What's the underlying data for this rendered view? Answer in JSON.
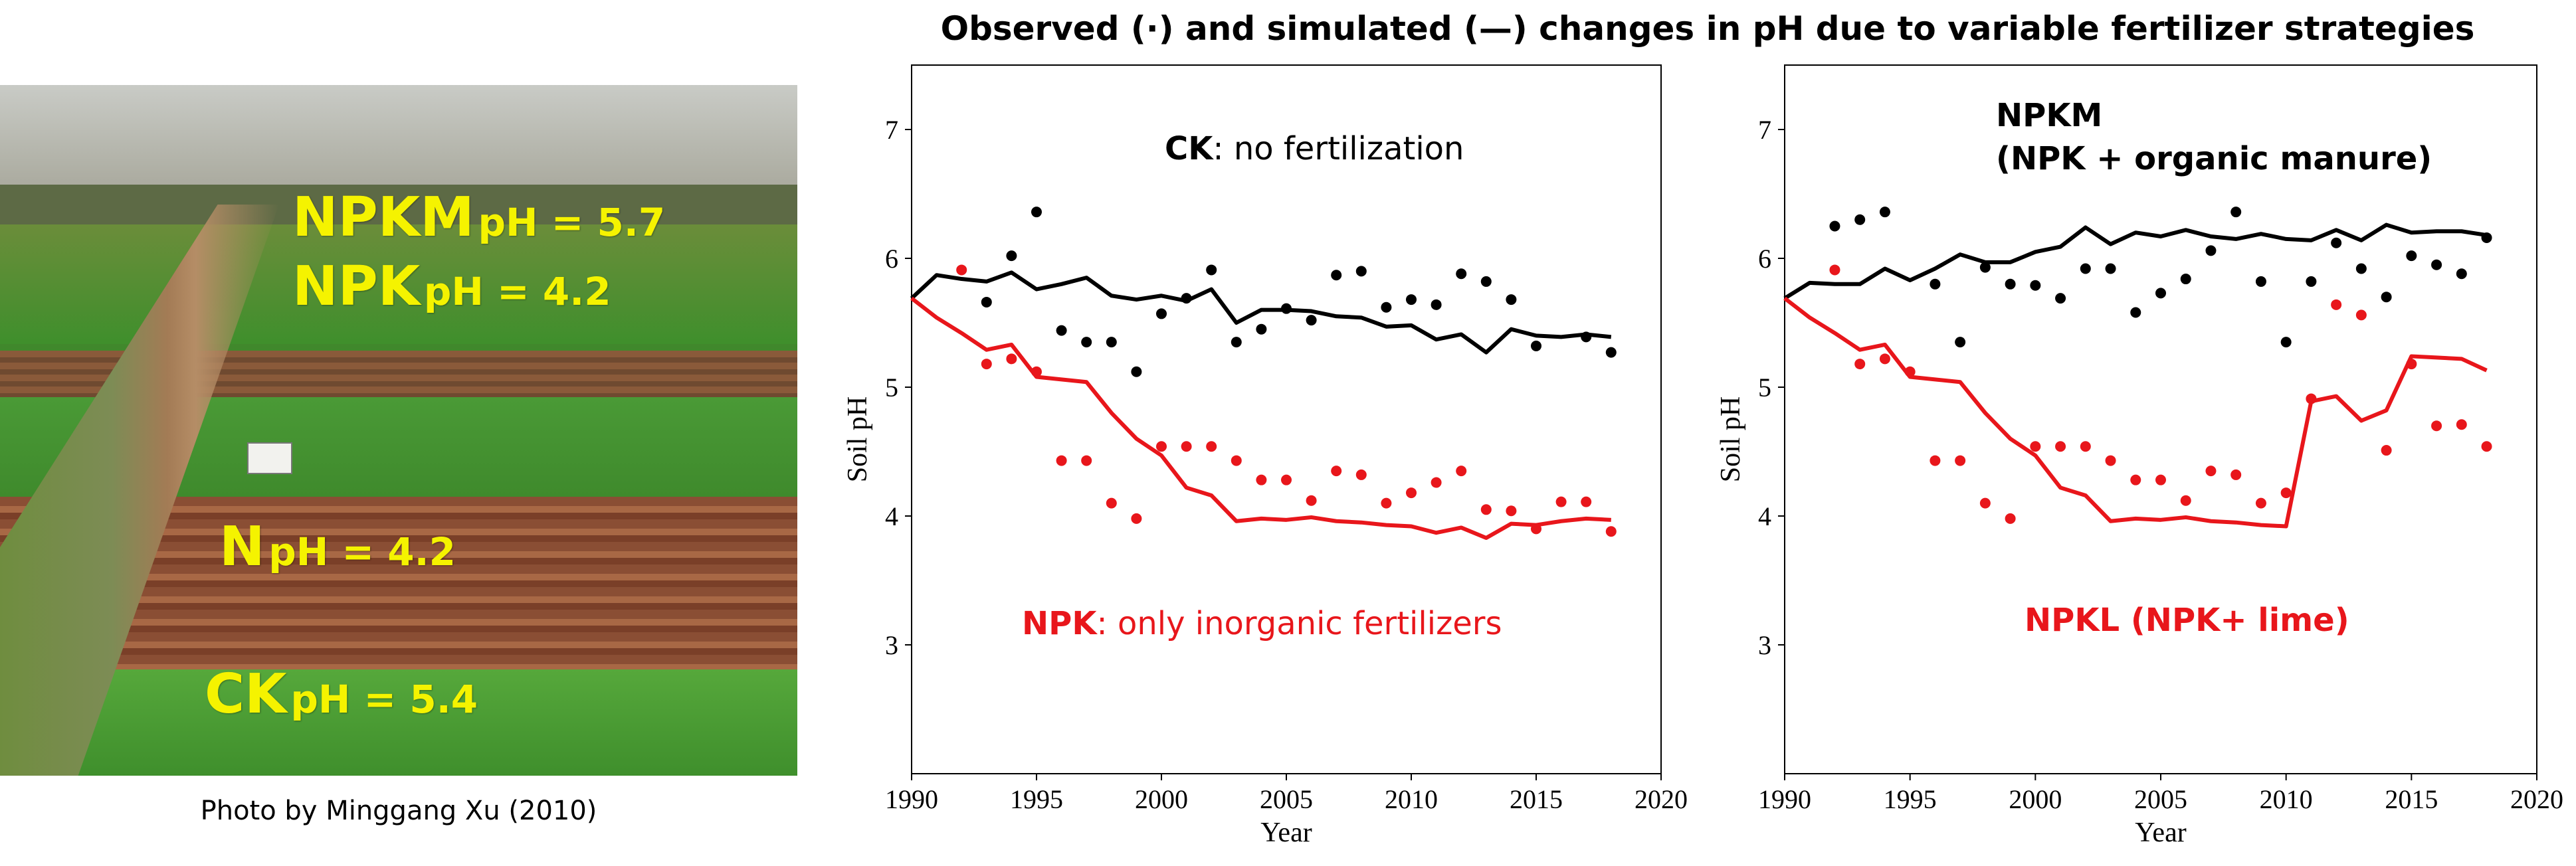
{
  "title": "Observed (·) and simulated (—) changes in pH due to variable fertilizer strategies",
  "photo": {
    "credit": "Photo by Minggang Xu (2010)",
    "labels": [
      {
        "name": "NPKM",
        "ph": "pH = 5.7"
      },
      {
        "name": "NPK",
        "ph": "pH = 4.2"
      },
      {
        "name": "N",
        "ph": "pH = 4.2"
      },
      {
        "name": "CK",
        "ph": "pH = 5.4"
      }
    ]
  },
  "colors": {
    "black_series": "#000000",
    "red_series": "#e8161b",
    "label_yellow": "#f5f300"
  },
  "chart_data": [
    {
      "type": "line",
      "xlabel": "Year",
      "ylabel": "Soil pH",
      "xlim": [
        1990,
        2020
      ],
      "ylim": [
        2.0,
        7.5
      ],
      "xticks": [
        1990,
        1995,
        2000,
        2005,
        2010,
        2015,
        2020
      ],
      "yticks": [
        3,
        4,
        5,
        6,
        7
      ],
      "annotations": [
        {
          "bold": "CK",
          "rest": ": no fertilization",
          "color": "#000000"
        },
        {
          "bold": "NPK",
          "rest": ": only inorganic fertilizers",
          "color": "#e8161b"
        }
      ],
      "series": [
        {
          "kind": "simulated",
          "color": "#000000",
          "x": [
            1990,
            1991,
            1992,
            1993,
            1994,
            1995,
            1996,
            1997,
            1998,
            1999,
            2000,
            2001,
            2002,
            2003,
            2004,
            2005,
            2006,
            2007,
            2008,
            2009,
            2010,
            2011,
            2012,
            2013,
            2014,
            2015,
            2016,
            2017,
            2018
          ],
          "y": [
            5.69,
            5.87,
            5.84,
            5.82,
            5.89,
            5.76,
            5.8,
            5.85,
            5.71,
            5.68,
            5.71,
            5.67,
            5.76,
            5.5,
            5.6,
            5.6,
            5.59,
            5.55,
            5.54,
            5.47,
            5.48,
            5.37,
            5.41,
            5.27,
            5.45,
            5.4,
            5.39,
            5.41,
            5.39
          ]
        },
        {
          "kind": "observed",
          "color": "#000000",
          "x": [
            1993,
            1994,
            1995,
            1996,
            1997,
            1998,
            1999,
            2000,
            2001,
            2002,
            2003,
            2004,
            2005,
            2006,
            2007,
            2008,
            2009,
            2010,
            2011,
            2012,
            2013,
            2014,
            2015,
            2017,
            2018
          ],
          "y": [
            5.66,
            6.02,
            6.36,
            5.44,
            5.35,
            5.35,
            5.12,
            5.57,
            5.69,
            5.91,
            5.35,
            5.45,
            5.61,
            5.52,
            5.87,
            5.9,
            5.62,
            5.68,
            5.64,
            5.88,
            5.82,
            5.68,
            5.32,
            5.39,
            5.27
          ]
        },
        {
          "kind": "simulated",
          "color": "#e8161b",
          "x": [
            1990,
            1991,
            1992,
            1993,
            1994,
            1995,
            1996,
            1997,
            1998,
            1999,
            2000,
            2001,
            2002,
            2003,
            2004,
            2005,
            2006,
            2007,
            2008,
            2009,
            2010,
            2011,
            2012,
            2013,
            2014,
            2015,
            2016,
            2017,
            2018
          ],
          "y": [
            5.69,
            5.54,
            5.42,
            5.29,
            5.33,
            5.08,
            5.06,
            5.04,
            4.8,
            4.6,
            4.47,
            4.22,
            4.16,
            3.96,
            3.98,
            3.97,
            3.99,
            3.96,
            3.95,
            3.93,
            3.92,
            3.87,
            3.91,
            3.83,
            3.94,
            3.93,
            3.96,
            3.98,
            3.97
          ]
        },
        {
          "kind": "observed",
          "color": "#e8161b",
          "x": [
            1992,
            1993,
            1994,
            1995,
            1996,
            1997,
            1998,
            1999,
            2000,
            2001,
            2002,
            2003,
            2004,
            2005,
            2006,
            2007,
            2008,
            2009,
            2010,
            2011,
            2012,
            2013,
            2014,
            2015,
            2016,
            2017,
            2018
          ],
          "y": [
            5.91,
            5.18,
            5.22,
            5.12,
            4.43,
            4.43,
            4.1,
            3.98,
            4.54,
            4.54,
            4.54,
            4.43,
            4.28,
            4.28,
            4.12,
            4.35,
            4.32,
            4.1,
            4.18,
            4.26,
            4.35,
            4.05,
            4.04,
            3.9,
            4.11,
            4.11,
            3.88
          ]
        }
      ]
    },
    {
      "type": "line",
      "xlabel": "Year",
      "ylabel": "Soil pH",
      "xlim": [
        1990,
        2020
      ],
      "ylim": [
        2.0,
        7.5
      ],
      "xticks": [
        1990,
        1995,
        2000,
        2005,
        2010,
        2015,
        2020
      ],
      "yticks": [
        3,
        4,
        5,
        6,
        7
      ],
      "annotations": [
        {
          "bold": "NPKM",
          "rest": "",
          "color": "#000000"
        },
        {
          "bold": "(NPK + organic manure)",
          "rest": "",
          "color": "#000000"
        },
        {
          "bold": "NPKL (NPK+ lime)",
          "rest": "",
          "color": "#e8161b"
        }
      ],
      "series": [
        {
          "kind": "simulated",
          "color": "#000000",
          "x": [
            1990,
            1991,
            1992,
            1993,
            1994,
            1995,
            1996,
            1997,
            1998,
            1999,
            2000,
            2001,
            2002,
            2003,
            2004,
            2005,
            2006,
            2007,
            2008,
            2009,
            2010,
            2011,
            2012,
            2013,
            2014,
            2015,
            2016,
            2017,
            2018
          ],
          "y": [
            5.69,
            5.81,
            5.8,
            5.8,
            5.92,
            5.83,
            5.92,
            6.03,
            5.97,
            5.97,
            6.05,
            6.09,
            6.24,
            6.11,
            6.2,
            6.17,
            6.22,
            6.17,
            6.15,
            6.19,
            6.15,
            6.14,
            6.22,
            6.14,
            6.26,
            6.2,
            6.21,
            6.21,
            6.18
          ]
        },
        {
          "kind": "observed",
          "color": "#000000",
          "x": [
            1992,
            1993,
            1994,
            1996,
            1997,
            1998,
            1999,
            2000,
            2001,
            2002,
            2003,
            2004,
            2005,
            2006,
            2007,
            2008,
            2009,
            2010,
            2011,
            2012,
            2013,
            2014,
            2015,
            2016,
            2017,
            2018
          ],
          "y": [
            6.25,
            6.3,
            6.36,
            5.8,
            5.35,
            5.93,
            5.8,
            5.79,
            5.69,
            5.92,
            5.92,
            5.58,
            5.73,
            5.84,
            6.06,
            6.36,
            5.82,
            5.35,
            5.82,
            6.12,
            5.92,
            5.7,
            6.02,
            5.95,
            5.88,
            6.16
          ]
        },
        {
          "kind": "simulated",
          "color": "#e8161b",
          "x": [
            1990,
            1991,
            1992,
            1993,
            1994,
            1995,
            1996,
            1997,
            1998,
            1999,
            2000,
            2001,
            2002,
            2003,
            2004,
            2005,
            2006,
            2007,
            2008,
            2009,
            2010,
            2011,
            2012,
            2013,
            2014,
            2015,
            2016,
            2017,
            2018
          ],
          "y": [
            5.69,
            5.54,
            5.42,
            5.29,
            5.33,
            5.08,
            5.06,
            5.04,
            4.8,
            4.6,
            4.47,
            4.22,
            4.16,
            3.96,
            3.98,
            3.97,
            3.99,
            3.96,
            3.95,
            3.93,
            3.92,
            4.89,
            4.93,
            4.74,
            4.82,
            5.24,
            5.23,
            5.22,
            5.13
          ]
        },
        {
          "kind": "observed",
          "color": "#e8161b",
          "x": [
            1992,
            1993,
            1994,
            1995,
            1996,
            1997,
            1998,
            1999,
            2000,
            2001,
            2002,
            2003,
            2004,
            2005,
            2006,
            2007,
            2008,
            2009,
            2010,
            2011,
            2012,
            2013,
            2014,
            2015,
            2016,
            2017,
            2018
          ],
          "y": [
            5.91,
            5.18,
            5.22,
            5.12,
            4.43,
            4.43,
            4.1,
            3.98,
            4.54,
            4.54,
            4.54,
            4.43,
            4.28,
            4.28,
            4.12,
            4.35,
            4.32,
            4.1,
            4.18,
            4.91,
            5.64,
            5.56,
            4.51,
            5.18,
            4.7,
            4.71,
            4.54
          ]
        }
      ]
    }
  ]
}
